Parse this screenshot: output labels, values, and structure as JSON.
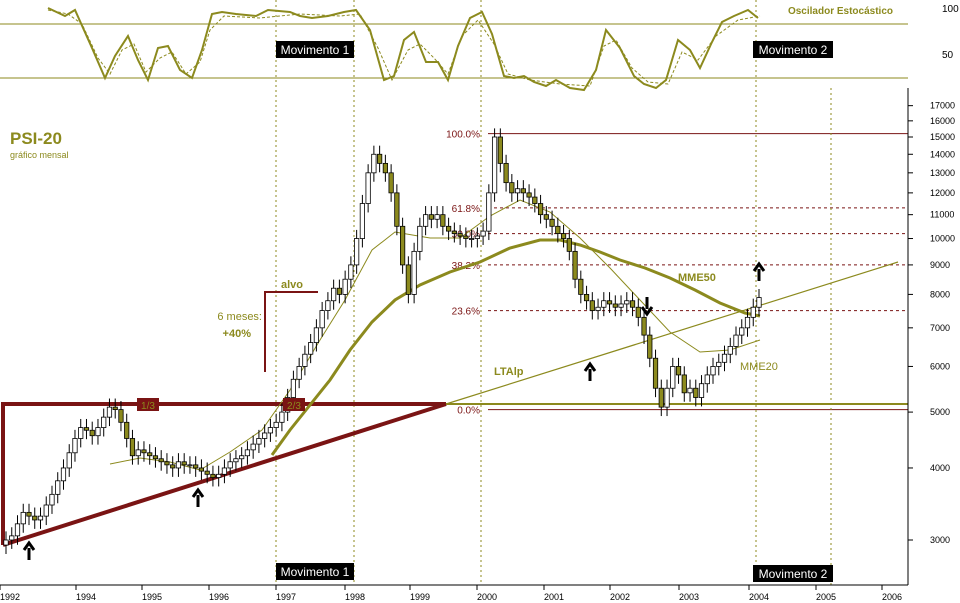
{
  "chart_data": {
    "type": "candlestick",
    "title": "PSI-20",
    "subtitle": "gráfico mensal",
    "oscillator_label": "Oscilador Estocástico",
    "oscillator_ticks": [
      "100",
      "50"
    ],
    "y_scale": "log",
    "y_ticks": [
      "17000",
      "16000",
      "15000",
      "14000",
      "13000",
      "12000",
      "11000",
      "10000",
      "9000",
      "8000",
      "7000",
      "6000",
      "5000",
      "4000",
      "3000"
    ],
    "x_ticks": [
      "1992",
      "1994",
      "1995",
      "1996",
      "1997",
      "1998",
      "1999",
      "2000",
      "2001",
      "2002",
      "2003",
      "2004",
      "2005",
      "2006"
    ],
    "fibonacci_levels": [
      {
        "label": "100.0%",
        "value": 15200
      },
      {
        "label": "61.8%",
        "value": 11300
      },
      {
        "label": "50.0%",
        "value": 10200
      },
      {
        "label": "38.2%",
        "value": 9000
      },
      {
        "label": "23.6%",
        "value": 7500
      },
      {
        "label": "0.0%",
        "value": 5050
      }
    ],
    "annotations": {
      "movimento1": "Movimento 1",
      "movimento2": "Movimento 2",
      "alvo": "alvo",
      "seis_meses": "6 meses:",
      "mais40": "+40%",
      "um_terco": "1/3",
      "dois_tercos": "2/3",
      "mme50": "MME50",
      "mme20": "MME20",
      "ltalp": "LTAlp"
    },
    "monthly_closes": [
      3000,
      3050,
      3200,
      3350,
      3300,
      3250,
      3300,
      3450,
      3600,
      3800,
      4000,
      4250,
      4500,
      4700,
      4650,
      4550,
      4700,
      4900,
      5100,
      5050,
      4800,
      4500,
      4200,
      4300,
      4250,
      4200,
      4150,
      4100,
      4050,
      4000,
      4100,
      4050,
      4050,
      4000,
      3950,
      3900,
      3850,
      3900,
      4000,
      4100,
      4150,
      4200,
      4300,
      4400,
      4500,
      4600,
      4700,
      4800,
      5000,
      5300,
      5700,
      6000,
      6300,
      6600,
      7000,
      7500,
      7800,
      8200,
      8000,
      8500,
      9000,
      10000,
      11500,
      13000,
      14000,
      13500,
      13000,
      12000,
      10500,
      9000,
      8000,
      9500,
      10500,
      11000,
      10800,
      11000,
      10500,
      10300,
      10200,
      10100,
      10000,
      10000,
      10100,
      10300,
      12000,
      15000,
      13500,
      12500,
      12000,
      12200,
      12000,
      11800,
      11500,
      11000,
      10800,
      10500,
      10200,
      10000,
      9500,
      8500,
      8000,
      7800,
      7500,
      7600,
      7800,
      7700,
      7600,
      7700,
      7800,
      7600,
      7300,
      6800,
      6200,
      5500,
      5100,
      5500,
      6000,
      5800,
      5400,
      5500,
      5300,
      5600,
      5800,
      6000,
      6100,
      6300,
      6500,
      6800,
      7000,
      7300,
      7600,
      7900
    ],
    "first_month": "1992-01"
  }
}
